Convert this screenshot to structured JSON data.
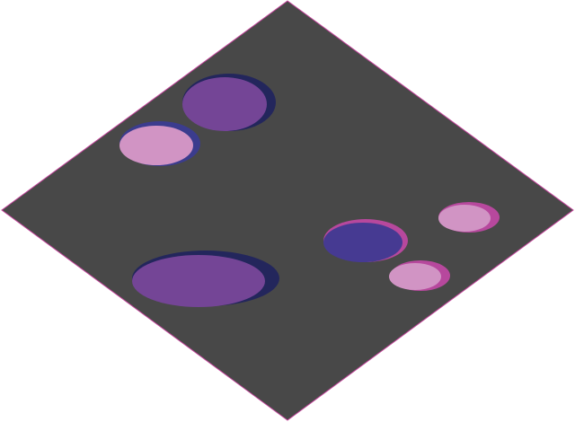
{
  "scene": {
    "board": {
      "fill": "#484848",
      "outline": "#c2449a"
    },
    "pieces": [
      {
        "id": "piece-a",
        "shadow": "#23265c",
        "face": "#744596"
      },
      {
        "id": "piece-b",
        "shadow": "#3b3c8e",
        "face": "#d194c4"
      },
      {
        "id": "piece-c",
        "shadow": "#23265c",
        "face": "#744596"
      },
      {
        "id": "piece-d",
        "shadow": "#b7489d",
        "face": "#463a92"
      },
      {
        "id": "piece-e",
        "shadow": "#b7489d",
        "face": "#d194c4"
      },
      {
        "id": "piece-f",
        "shadow": "#b7489d",
        "face": "#d194c4"
      }
    ]
  }
}
